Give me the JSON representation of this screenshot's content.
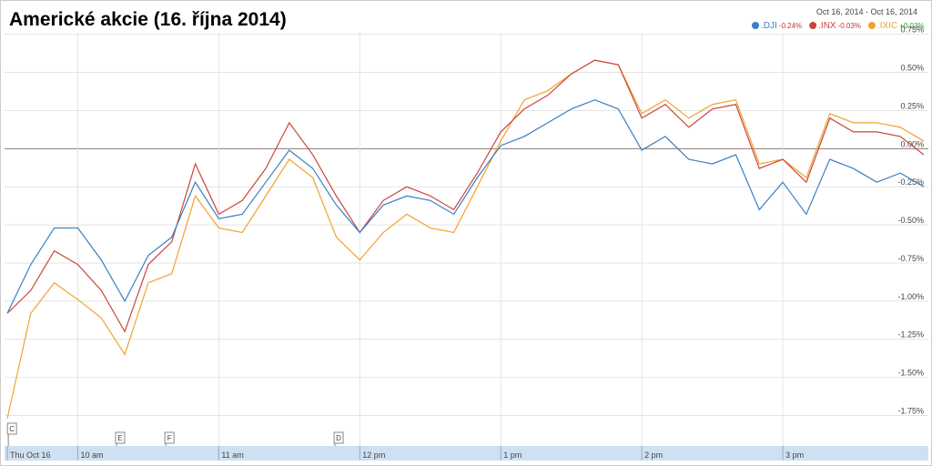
{
  "chart_data": {
    "type": "line",
    "title": "Americké akcie (16. října 2014)",
    "date_range": "Oct 16, 2014  -  Oct 16, 2014",
    "x": [
      570,
      580,
      590,
      600,
      610,
      620,
      630,
      640,
      650,
      660,
      670,
      680,
      690,
      700,
      710,
      720,
      730,
      740,
      750,
      760,
      770,
      780,
      790,
      800,
      810,
      820,
      830,
      840,
      850,
      860,
      870,
      880,
      890,
      900,
      910,
      920,
      930,
      940,
      950,
      960
    ],
    "series": [
      {
        "name": ".DJI",
        "change": "-0.24%",
        "color": "#3a7fc1",
        "values": [
          -1.08,
          -0.76,
          -0.52,
          -0.52,
          -0.73,
          -1.0,
          -0.7,
          -0.58,
          -0.22,
          -0.46,
          -0.43,
          -0.22,
          -0.01,
          -0.13,
          -0.37,
          -0.55,
          -0.37,
          -0.31,
          -0.34,
          -0.43,
          -0.19,
          0.02,
          0.08,
          0.17,
          0.26,
          0.32,
          0.26,
          -0.01,
          0.08,
          -0.07,
          -0.1,
          -0.04,
          -0.4,
          -0.22,
          -0.43,
          -0.07,
          -0.13,
          -0.22,
          -0.16,
          -0.25
        ]
      },
      {
        "name": ".INX",
        "change": "-0.03%",
        "color": "#c9463a",
        "values": [
          -1.08,
          -0.93,
          -0.67,
          -0.76,
          -0.93,
          -1.2,
          -0.76,
          -0.61,
          -0.1,
          -0.43,
          -0.34,
          -0.13,
          0.17,
          -0.04,
          -0.31,
          -0.55,
          -0.34,
          -0.25,
          -0.31,
          -0.4,
          -0.16,
          0.11,
          0.26,
          0.35,
          0.49,
          0.58,
          0.55,
          0.2,
          0.29,
          0.14,
          0.26,
          0.29,
          -0.13,
          -0.07,
          -0.22,
          0.2,
          0.11,
          0.11,
          0.08,
          -0.04
        ]
      },
      {
        "name": ".IXIC",
        "change": "+0.03%",
        "color": "#f0a32e",
        "values": [
          -1.77,
          -1.08,
          -0.88,
          -0.99,
          -1.11,
          -1.35,
          -0.88,
          -0.82,
          -0.31,
          -0.52,
          -0.55,
          -0.31,
          -0.07,
          -0.19,
          -0.58,
          -0.73,
          -0.55,
          -0.43,
          -0.52,
          -0.55,
          -0.25,
          0.05,
          0.32,
          0.38,
          0.49,
          0.58,
          0.55,
          0.23,
          0.32,
          0.2,
          0.29,
          0.32,
          -0.1,
          -0.07,
          -0.19,
          0.23,
          0.17,
          0.17,
          0.14,
          0.05
        ]
      }
    ],
    "xlim": [
      570,
      960
    ],
    "xticks": [
      {
        "value": 570,
        "label": "Thu Oct 16"
      },
      {
        "value": 600,
        "label": "10 am"
      },
      {
        "value": 660,
        "label": "11 am"
      },
      {
        "value": 720,
        "label": "12 pm"
      },
      {
        "value": 780,
        "label": "1 pm"
      },
      {
        "value": 840,
        "label": "2 pm"
      },
      {
        "value": 900,
        "label": "3 pm"
      }
    ],
    "ylim": [
      -1.95,
      0.76
    ],
    "yticks": [
      {
        "value": 0.75,
        "label": "0.75%"
      },
      {
        "value": 0.5,
        "label": "0.50%"
      },
      {
        "value": 0.25,
        "label": "0.25%"
      },
      {
        "value": 0,
        "label": "0.00%"
      },
      {
        "value": -0.25,
        "label": "-0.25%"
      },
      {
        "value": -0.5,
        "label": "-0.50%"
      },
      {
        "value": -0.75,
        "label": "-0.75%"
      },
      {
        "value": -1,
        "label": "-1.00%"
      },
      {
        "value": -1.25,
        "label": "-1.25%"
      },
      {
        "value": -1.5,
        "label": "-1.50%"
      },
      {
        "value": -1.75,
        "label": "-1.75%"
      }
    ],
    "grid": true,
    "events": [
      {
        "label": "C",
        "x": 572
      },
      {
        "label": "E",
        "x": 618
      },
      {
        "label": "F",
        "x": 639
      },
      {
        "label": "D",
        "x": 711
      }
    ]
  }
}
